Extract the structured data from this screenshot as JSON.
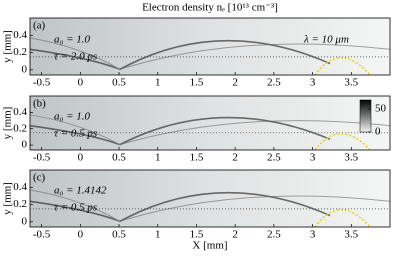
{
  "chart_data": [
    {
      "type": "heatmap",
      "title": "Electron density nₑ [10¹³ cm⁻³]",
      "panel_label": "(a)",
      "annotations": [
        "a₀ = 1.0",
        "τ = 2.0 ps",
        "λ = 10 μm"
      ],
      "ylabel": "y [mm]",
      "xlim": [
        -0.65,
        4.0
      ],
      "xticks": [
        -0.5,
        0,
        0.5,
        1,
        1.5,
        2,
        2.5,
        3,
        3.5
      ],
      "ylim": [
        -0.06,
        0.6
      ],
      "yticks": [
        0,
        0.2,
        0.4
      ]
    },
    {
      "type": "heatmap",
      "panel_label": "(b)",
      "annotations": [
        "a₀ = 1.0",
        "τ = 0.5 ps"
      ],
      "ylabel": "y [mm]",
      "xlim": [
        -0.65,
        4.0
      ],
      "xticks": [
        -0.5,
        0,
        0.5,
        1,
        1.5,
        2,
        2.5,
        3,
        3.5
      ],
      "ylim": [
        -0.06,
        0.6
      ],
      "yticks": [
        0,
        0.2,
        0.4
      ],
      "colorbar": {
        "lim": [
          0,
          70
        ],
        "ticks": [
          0,
          50
        ]
      }
    },
    {
      "type": "heatmap",
      "panel_label": "(c)",
      "annotations": [
        "a₀ = 1.4142",
        "τ = 0.5 ps"
      ],
      "ylabel": "y [mm]",
      "xlabel": "X [mm]",
      "xlim": [
        -0.65,
        4.0
      ],
      "xticks": [
        -0.5,
        0,
        0.5,
        1,
        1.5,
        2,
        2.5,
        3,
        3.5
      ],
      "ylim": [
        -0.06,
        0.6
      ],
      "yticks": [
        0,
        0.2,
        0.4
      ]
    }
  ]
}
